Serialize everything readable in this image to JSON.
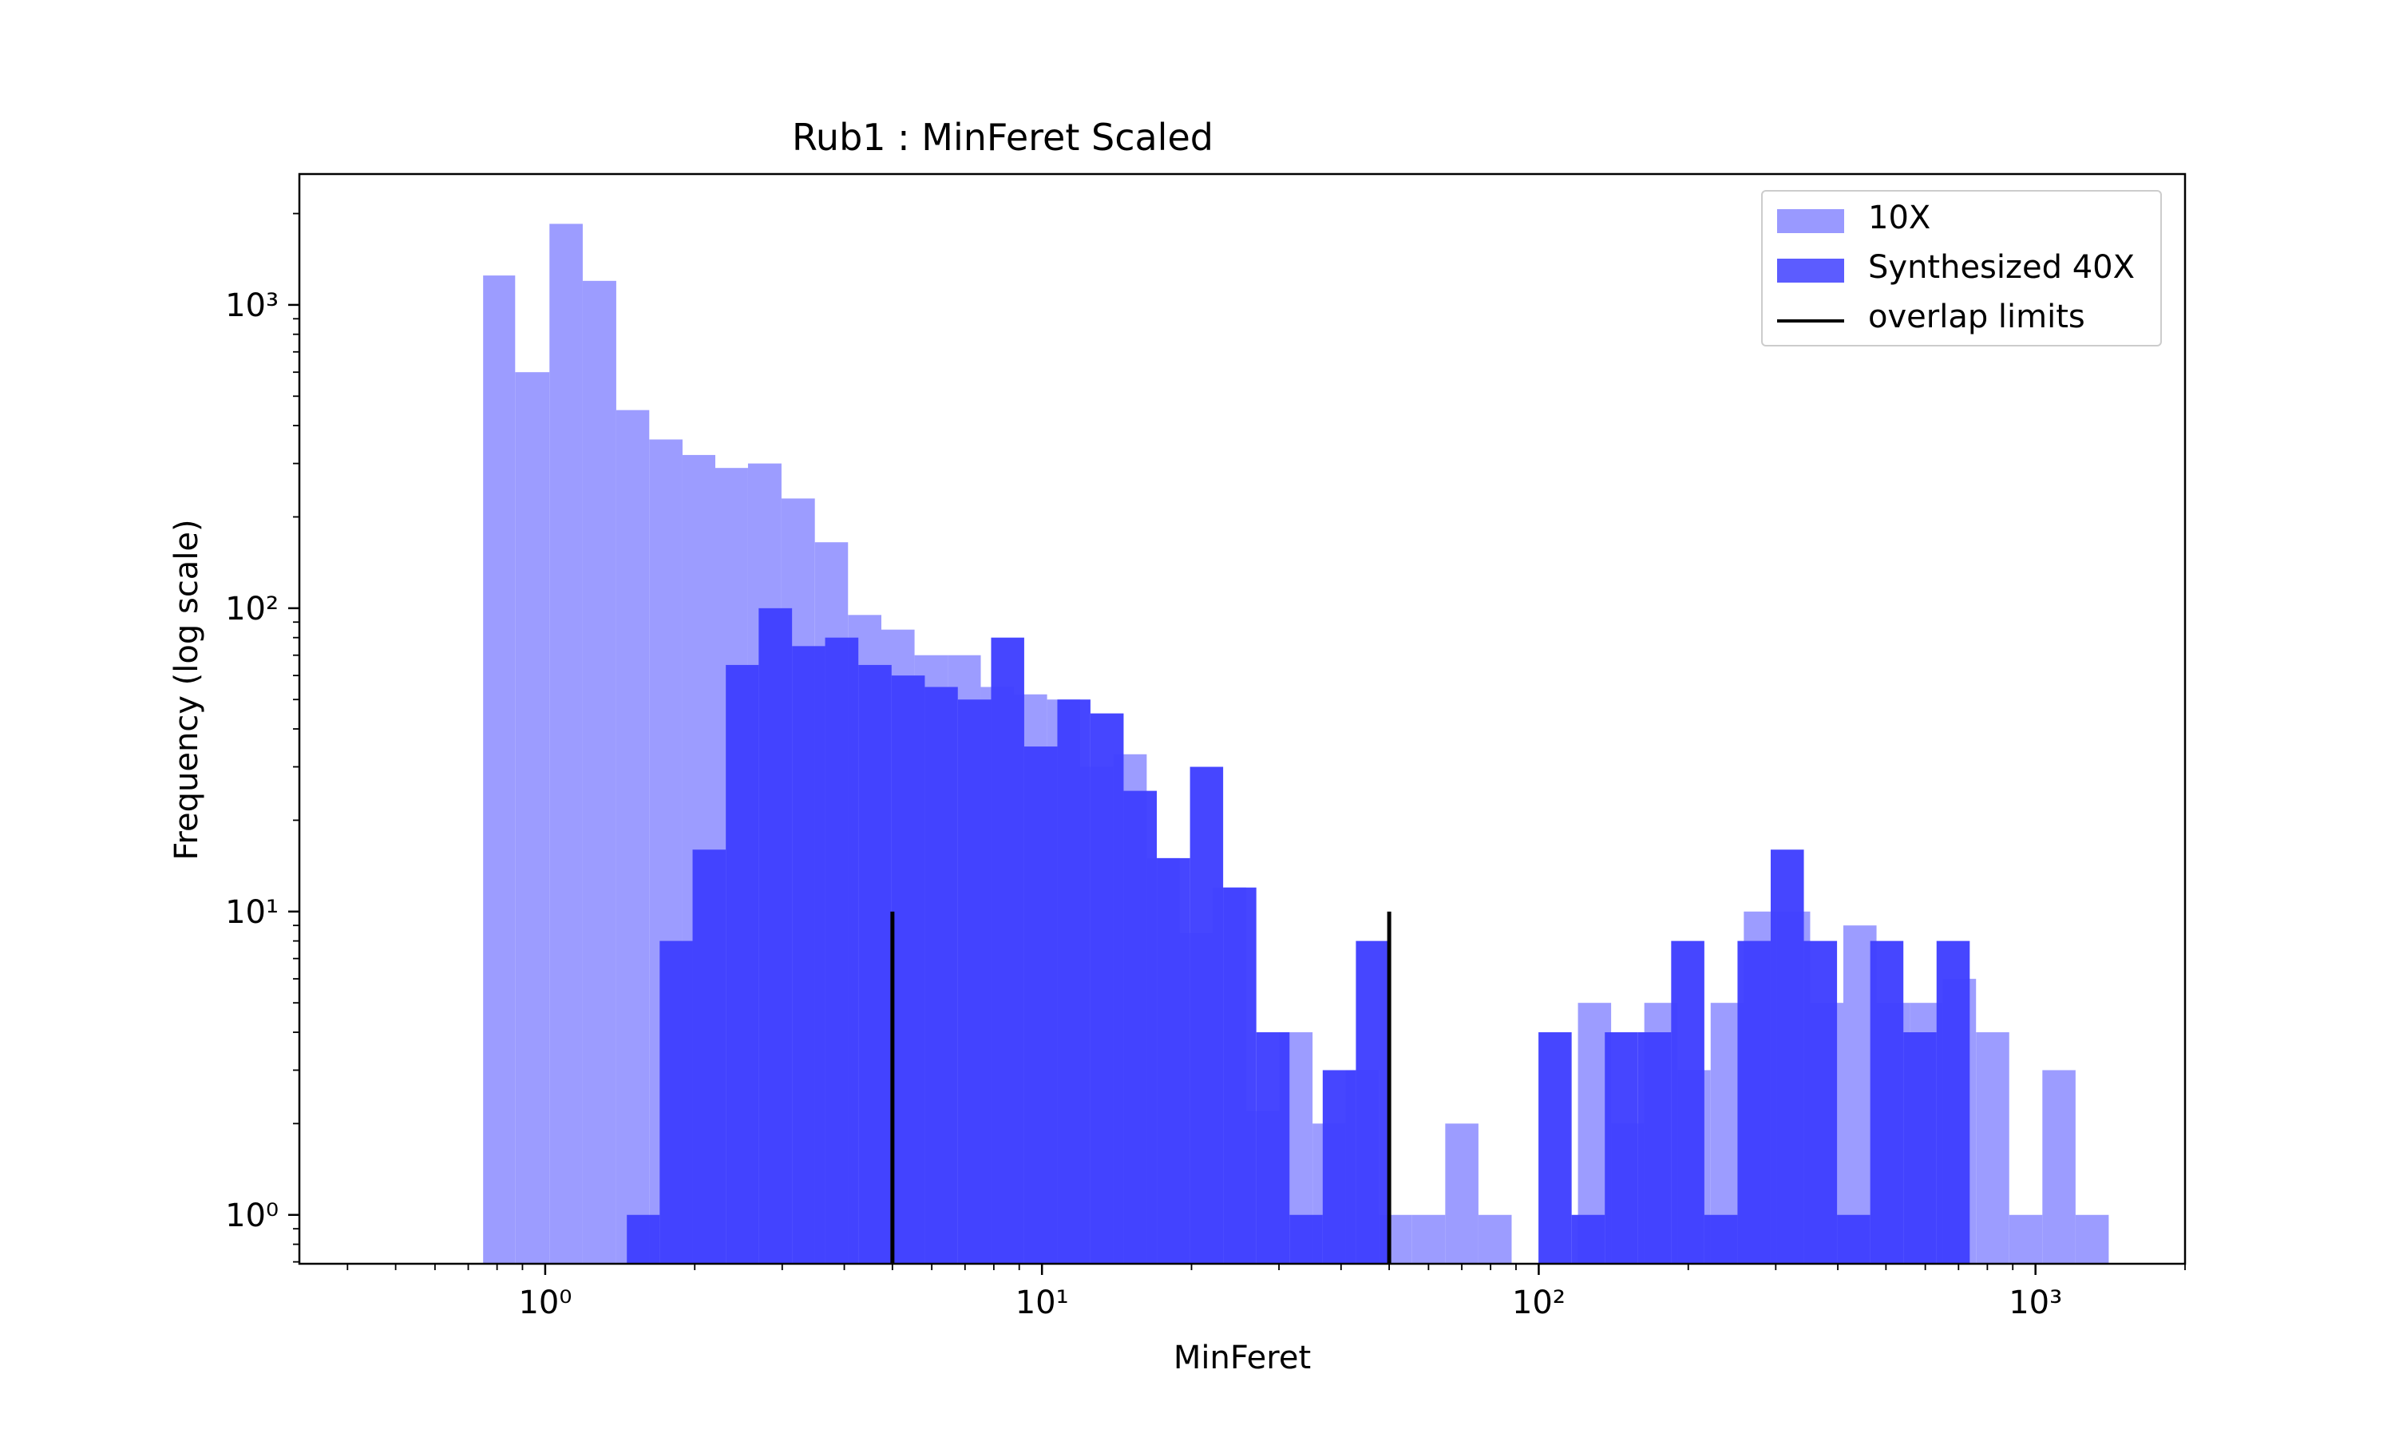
{
  "chart_data": {
    "type": "bar",
    "title": "Rub1 : MinFeret Scaled",
    "xlabel": "MinFeret",
    "ylabel": "Frequency (log scale)",
    "xscale": "log",
    "yscale": "log",
    "xlim": [
      0.32,
      2000
    ],
    "ylim": [
      0.69,
      2700
    ],
    "xticks": [
      {
        "value": 1,
        "label": "10⁰"
      },
      {
        "value": 10,
        "label": "10¹"
      },
      {
        "value": 100,
        "label": "10²"
      },
      {
        "value": 1000,
        "label": "10³"
      }
    ],
    "yticks": [
      {
        "value": 1,
        "label": "10⁰"
      },
      {
        "value": 10,
        "label": "10¹"
      },
      {
        "value": 100,
        "label": "10²"
      },
      {
        "value": 1000,
        "label": "10³"
      }
    ],
    "grid": false,
    "legend_position": "top-right",
    "series": [
      {
        "name": "10X",
        "color": "#9999ff",
        "bins": [
          [
            0.75,
            0.87,
            1250
          ],
          [
            0.87,
            1.02,
            600
          ],
          [
            1.02,
            1.19,
            1850
          ],
          [
            1.19,
            1.39,
            1200
          ],
          [
            1.39,
            1.62,
            450
          ],
          [
            1.62,
            1.89,
            360
          ],
          [
            1.89,
            2.2,
            320
          ],
          [
            2.2,
            2.56,
            290
          ],
          [
            2.56,
            2.99,
            300
          ],
          [
            2.99,
            3.49,
            230
          ],
          [
            3.49,
            4.07,
            165
          ],
          [
            4.07,
            4.75,
            95
          ],
          [
            4.75,
            5.54,
            85
          ],
          [
            5.54,
            6.46,
            70
          ],
          [
            6.46,
            7.53,
            70
          ],
          [
            7.53,
            8.78,
            55
          ],
          [
            8.78,
            10.24,
            52
          ],
          [
            10.24,
            11.94,
            50
          ],
          [
            11.94,
            13.93,
            30
          ],
          [
            13.93,
            16.25,
            33
          ],
          [
            16.25,
            18.95,
            15
          ],
          [
            18.95,
            22.1,
            8.5
          ],
          [
            22.1,
            25.77,
            12
          ],
          [
            25.77,
            30.05,
            2.2
          ],
          [
            30.05,
            35.05,
            4
          ],
          [
            35.05,
            40.87,
            2
          ],
          [
            40.87,
            47.67,
            3
          ],
          [
            47.67,
            55.6,
            1
          ],
          [
            55.6,
            64.84,
            1
          ],
          [
            64.84,
            75.62,
            2
          ],
          [
            75.62,
            88.19,
            1
          ],
          [
            119.94,
            139.87,
            5
          ],
          [
            139.87,
            163.12,
            2
          ],
          [
            163.12,
            190.24,
            5
          ],
          [
            190.24,
            221.86,
            3
          ],
          [
            221.86,
            258.74,
            5
          ],
          [
            258.74,
            301.74,
            10
          ],
          [
            301.74,
            351.9,
            10
          ],
          [
            351.9,
            410.39,
            5
          ],
          [
            410.39,
            478.6,
            9
          ],
          [
            478.6,
            558.15,
            5
          ],
          [
            558.15,
            650.92,
            5
          ],
          [
            650.92,
            759.11,
            6
          ],
          [
            759.11,
            885.28,
            4
          ],
          [
            885.28,
            1032.43,
            1
          ],
          [
            1032.43,
            1204.04,
            3
          ],
          [
            1204.04,
            1404.16,
            1
          ]
        ]
      },
      {
        "name": "Synthesized 40X",
        "color": "#4040ff",
        "bins": [
          [
            1.46,
            1.7,
            1
          ],
          [
            1.7,
            1.98,
            8
          ],
          [
            1.98,
            2.31,
            16
          ],
          [
            2.31,
            2.69,
            65
          ],
          [
            2.69,
            3.14,
            100
          ],
          [
            3.14,
            3.66,
            75
          ],
          [
            3.66,
            4.27,
            80
          ],
          [
            4.27,
            4.98,
            65
          ],
          [
            4.98,
            5.81,
            60
          ],
          [
            5.81,
            6.77,
            55
          ],
          [
            6.77,
            7.9,
            50
          ],
          [
            7.9,
            9.21,
            80
          ],
          [
            9.21,
            10.74,
            35
          ],
          [
            10.74,
            12.52,
            50
          ],
          [
            12.52,
            14.6,
            45
          ],
          [
            14.6,
            17.03,
            25
          ],
          [
            17.03,
            19.86,
            15
          ],
          [
            19.86,
            23.16,
            30
          ],
          [
            23.16,
            27.01,
            12
          ],
          [
            27.01,
            31.5,
            4
          ],
          [
            31.5,
            36.74,
            1
          ],
          [
            36.74,
            42.85,
            3
          ],
          [
            42.85,
            49.97,
            8
          ],
          [
            99.88,
            116.48,
            4
          ],
          [
            116.48,
            135.85,
            1
          ],
          [
            135.85,
            158.43,
            4
          ],
          [
            158.43,
            184.76,
            4
          ],
          [
            184.76,
            215.47,
            8
          ],
          [
            215.47,
            251.28,
            1
          ],
          [
            251.28,
            293.05,
            8
          ],
          [
            293.05,
            341.76,
            16
          ],
          [
            341.76,
            398.57,
            8
          ],
          [
            398.57,
            464.82,
            1
          ],
          [
            464.82,
            542.08,
            8
          ],
          [
            542.08,
            632.19,
            4
          ],
          [
            632.19,
            737.28,
            8
          ]
        ]
      }
    ],
    "lines": [
      {
        "name": "overlap limits",
        "color": "#000000",
        "x": [
          5,
          50
        ],
        "y_range": [
          0.69,
          10
        ]
      }
    ]
  }
}
